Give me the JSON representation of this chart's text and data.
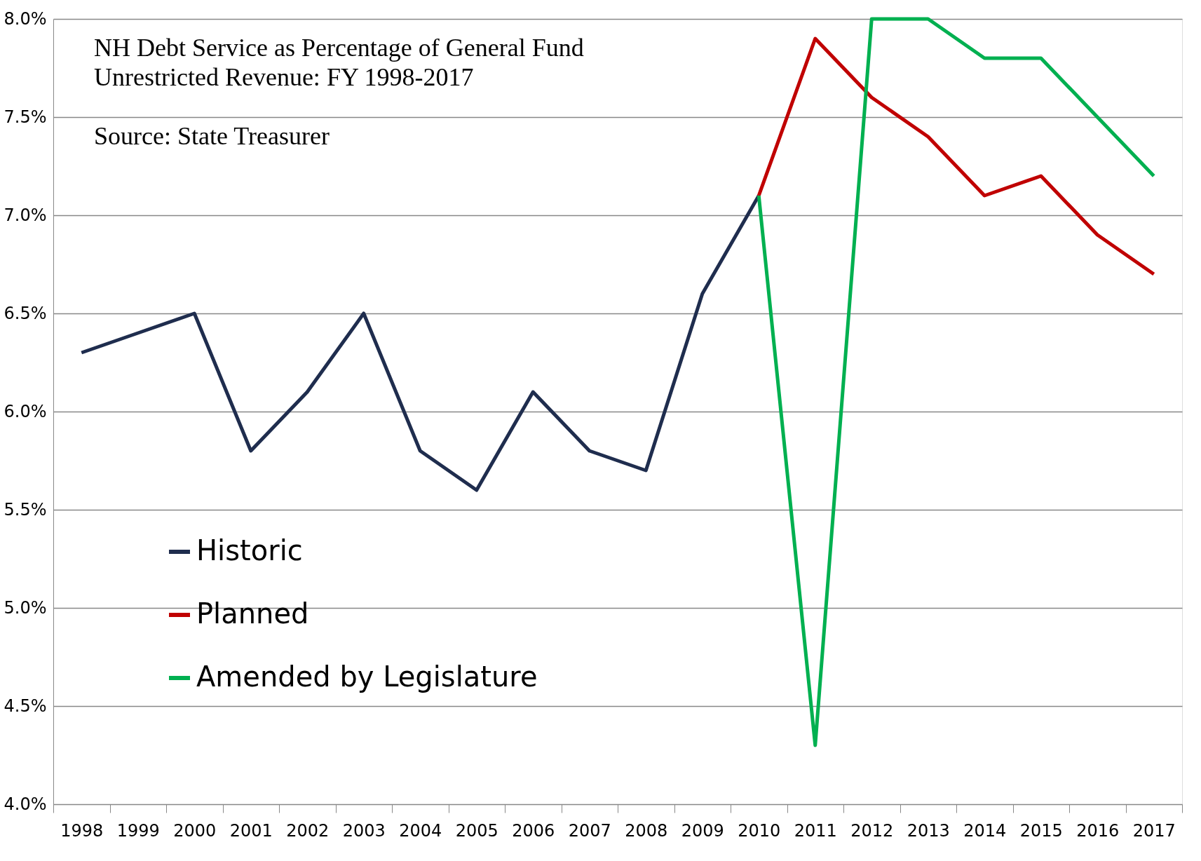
{
  "chart_data": {
    "type": "line",
    "title": "NH Debt Service as Percentage of General Fund\nUnrestricted Revenue: FY 1998-2017",
    "annotations": [
      "Source: State Treasurer"
    ],
    "categories": [
      "1998",
      "1999",
      "2000",
      "2001",
      "2002",
      "2003",
      "2004",
      "2005",
      "2006",
      "2007",
      "2008",
      "2009",
      "2010",
      "2011",
      "2012",
      "2013",
      "2014",
      "2015",
      "2016",
      "2017"
    ],
    "series": [
      {
        "name": "Historic",
        "color": "#1f2d4e",
        "values": [
          6.3,
          6.4,
          6.5,
          5.8,
          6.1,
          6.5,
          5.8,
          5.6,
          6.1,
          5.8,
          5.7,
          6.6,
          7.1,
          null,
          null,
          null,
          null,
          null,
          null,
          null
        ]
      },
      {
        "name": "Planned",
        "color": "#c00000",
        "values": [
          null,
          null,
          null,
          null,
          null,
          null,
          null,
          null,
          null,
          null,
          null,
          null,
          7.1,
          7.9,
          7.6,
          7.4,
          7.1,
          7.2,
          6.9,
          6.7
        ]
      },
      {
        "name": "Amended by Legislature",
        "color": "#00b050",
        "values": [
          null,
          null,
          null,
          null,
          null,
          null,
          null,
          null,
          null,
          null,
          null,
          null,
          7.1,
          4.3,
          8.0,
          8.0,
          7.8,
          7.8,
          7.5,
          7.2
        ]
      }
    ],
    "ylim": [
      4.0,
      8.0
    ],
    "yticks": [
      {
        "value": 4.0,
        "label": "4.0%"
      },
      {
        "value": 4.5,
        "label": "4.5%"
      },
      {
        "value": 5.0,
        "label": "5.0%"
      },
      {
        "value": 5.5,
        "label": "5.5%"
      },
      {
        "value": 6.0,
        "label": "6.0%"
      },
      {
        "value": 6.5,
        "label": "6.5%"
      },
      {
        "value": 7.0,
        "label": "7.0%"
      },
      {
        "value": 7.5,
        "label": "7.5%"
      },
      {
        "value": 8.0,
        "label": "8.0%"
      }
    ],
    "grid": "y",
    "legend": "bottom left",
    "marker": "none",
    "line_style": "solid"
  }
}
